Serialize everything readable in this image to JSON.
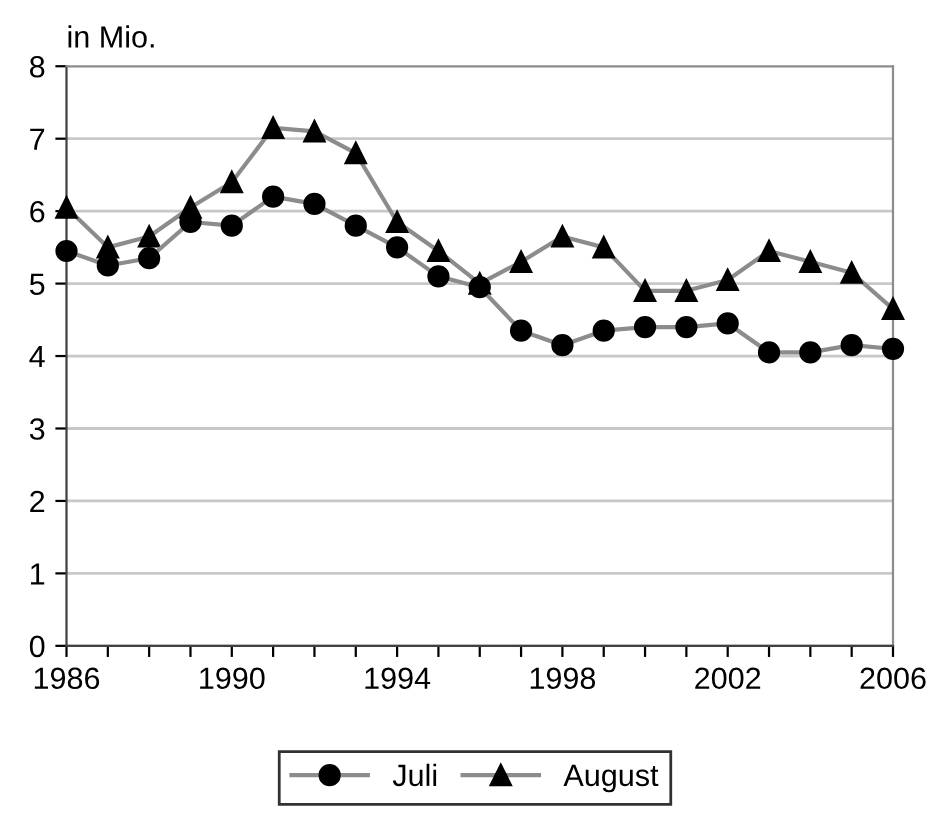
{
  "chart_data": {
    "type": "line",
    "ylabel": "in Mio.",
    "x": [
      1986,
      1987,
      1988,
      1989,
      1990,
      1991,
      1992,
      1993,
      1994,
      1995,
      1996,
      1997,
      1998,
      1999,
      2000,
      2001,
      2002,
      2003,
      2004,
      2005,
      2006
    ],
    "series": [
      {
        "name": "Juli",
        "color": "#000000",
        "marker": "circle",
        "values": [
          5.45,
          5.25,
          5.35,
          5.85,
          5.8,
          6.2,
          6.1,
          5.8,
          5.5,
          5.1,
          4.95,
          4.35,
          4.15,
          4.35,
          4.4,
          4.4,
          4.45,
          4.05,
          4.05,
          4.15,
          4.1
        ]
      },
      {
        "name": "August",
        "color": "#000000",
        "marker": "triangle",
        "values": [
          6.05,
          5.5,
          5.65,
          6.05,
          6.4,
          7.15,
          7.1,
          6.8,
          5.85,
          5.45,
          5.0,
          5.3,
          5.65,
          5.5,
          4.9,
          4.9,
          5.05,
          5.45,
          5.3,
          5.15,
          4.65
        ]
      }
    ],
    "xlim": [
      1986,
      2006
    ],
    "ylim": [
      0,
      8
    ],
    "xticks": [
      1986,
      {
        "value": 1987,
        "label": null
      },
      {
        "value": 1988,
        "label": null
      },
      {
        "value": 1989,
        "label": null
      },
      1990,
      {
        "value": 1991,
        "label": null
      },
      {
        "value": 1992,
        "label": null
      },
      {
        "value": 1993,
        "label": null
      },
      1994,
      {
        "value": 1995,
        "label": null
      },
      {
        "value": 1996,
        "label": null
      },
      {
        "value": 1997,
        "label": null
      },
      1998,
      {
        "value": 1999,
        "label": null
      },
      {
        "value": 2000,
        "label": null
      },
      {
        "value": 2001,
        "label": null
      },
      2002,
      {
        "value": 2003,
        "label": null
      },
      {
        "value": 2004,
        "label": null
      },
      {
        "value": 2005,
        "label": null
      },
      2006
    ],
    "yticks": [
      0,
      1,
      2,
      3,
      4,
      5,
      6,
      7,
      8
    ],
    "grid": "y",
    "legend": "bottom",
    "line_style": "solid"
  }
}
